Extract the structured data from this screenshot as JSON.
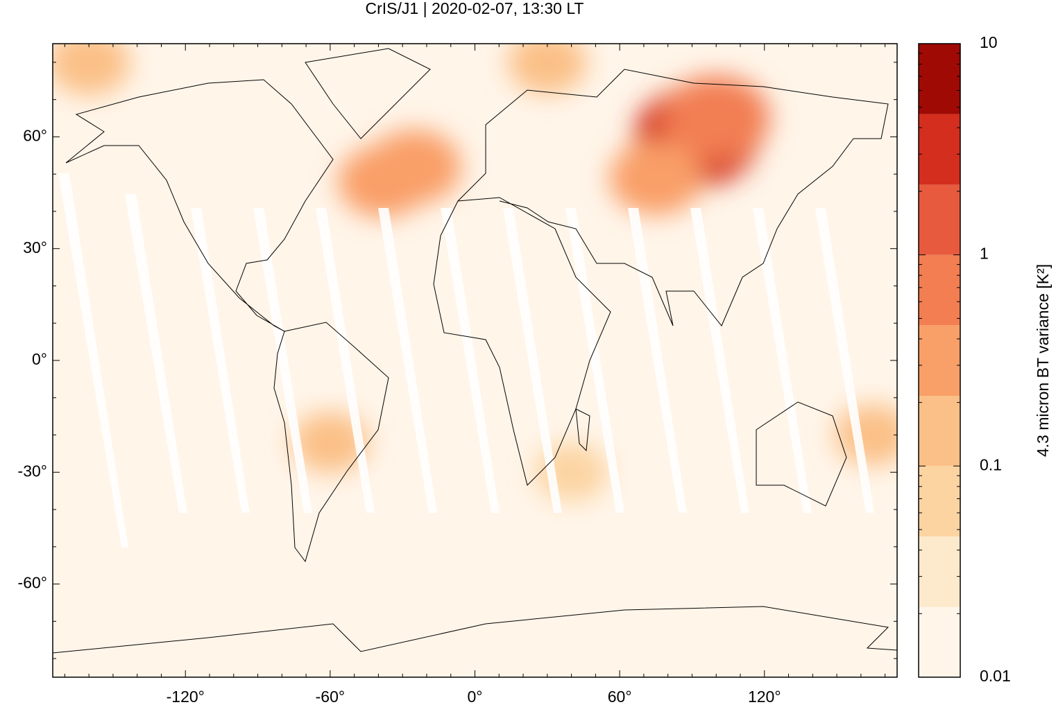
{
  "chart_data": {
    "type": "map",
    "title": "CrIS/J1 | 2020-02-07, 13:30 LT",
    "colorbar_label": "4.3 micron BT variance [K²]",
    "xlim": [
      -175,
      175
    ],
    "ylim": [
      -85,
      85
    ],
    "xticks": [
      {
        "value": -120,
        "label": "-120°"
      },
      {
        "value": -60,
        "label": "-60°"
      },
      {
        "value": 0,
        "label": "0°"
      },
      {
        "value": 60,
        "label": "60°"
      },
      {
        "value": 120,
        "label": "120°"
      }
    ],
    "yticks": [
      {
        "value": -60,
        "label": "-60°"
      },
      {
        "value": -30,
        "label": "-30°"
      },
      {
        "value": 0,
        "label": "0°"
      },
      {
        "value": 30,
        "label": "30°"
      },
      {
        "value": 60,
        "label": "60°"
      }
    ],
    "xminor": [
      -170,
      -160,
      -150,
      -140,
      -130,
      -110,
      -100,
      -90,
      -80,
      -70,
      -50,
      -40,
      -30,
      -20,
      -10,
      10,
      20,
      30,
      40,
      50,
      70,
      80,
      90,
      100,
      110,
      130,
      140,
      150,
      160,
      170
    ],
    "yminor": [
      -80,
      -70,
      -50,
      -40,
      -20,
      -10,
      10,
      20,
      40,
      50,
      70,
      80
    ],
    "clim": [
      0.01,
      10
    ],
    "clog": true,
    "cticks": [
      0.01,
      0.1,
      1,
      10
    ],
    "cminor": [
      0.02,
      0.03,
      0.04,
      0.05,
      0.06,
      0.07,
      0.08,
      0.09,
      0.2,
      0.3,
      0.4,
      0.5,
      0.6,
      0.7,
      0.8,
      0.9,
      2,
      3,
      4,
      5,
      6,
      7,
      8,
      9
    ],
    "levels": [
      0.01,
      0.0215,
      0.0464,
      0.1,
      0.215,
      0.464,
      1,
      2.15,
      4.64,
      10
    ],
    "colors": [
      "#fff5e9",
      "#fde9cb",
      "#fcd4a2",
      "#fbc087",
      "#f99f68",
      "#f27e52",
      "#e75a3e",
      "#d42e1f",
      "#a00a05"
    ],
    "background_value": 0.015,
    "hotspots": [
      {
        "lon": 92,
        "lat": 60,
        "value": 2.5
      },
      {
        "lon": 100,
        "lat": 65,
        "value": 0.8
      },
      {
        "lon": 75,
        "lat": 49,
        "value": 0.3
      },
      {
        "lon": -25,
        "lat": 52,
        "value": 0.3
      },
      {
        "lon": -38,
        "lat": 48,
        "value": 0.25
      },
      {
        "lon": -160,
        "lat": 80,
        "value": 0.15
      },
      {
        "lon": 30,
        "lat": 80,
        "value": 0.12
      },
      {
        "lon": -60,
        "lat": -22,
        "value": 0.1
      },
      {
        "lon": 40,
        "lat": -30,
        "value": 0.08
      },
      {
        "lon": 165,
        "lat": -20,
        "value": 0.1
      }
    ]
  }
}
